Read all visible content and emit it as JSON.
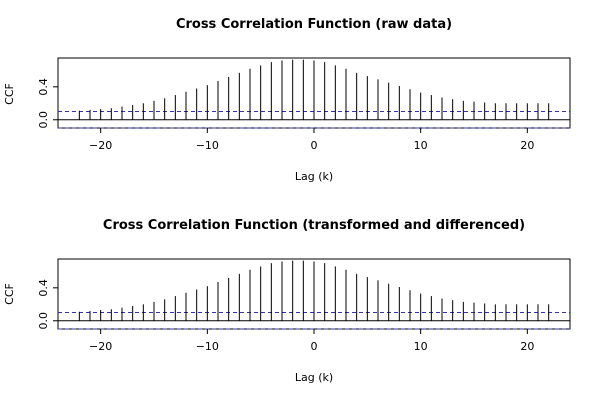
{
  "chart_data": [
    {
      "type": "bar",
      "title": "Cross Correlation Function (raw data)",
      "xlabel": "Lag (k)",
      "ylabel": "CCF",
      "x": [
        -22,
        -21,
        -20,
        -19,
        -18,
        -17,
        -16,
        -15,
        -14,
        -13,
        -12,
        -11,
        -10,
        -9,
        -8,
        -7,
        -6,
        -5,
        -4,
        -3,
        -2,
        -1,
        0,
        1,
        2,
        3,
        4,
        5,
        6,
        7,
        8,
        9,
        10,
        11,
        12,
        13,
        14,
        15,
        16,
        17,
        18,
        19,
        20,
        21,
        22
      ],
      "values": [
        0.11,
        0.12,
        0.13,
        0.14,
        0.16,
        0.18,
        0.2,
        0.23,
        0.26,
        0.3,
        0.34,
        0.38,
        0.42,
        0.47,
        0.52,
        0.57,
        0.62,
        0.66,
        0.7,
        0.72,
        0.73,
        0.73,
        0.72,
        0.7,
        0.66,
        0.62,
        0.57,
        0.53,
        0.49,
        0.45,
        0.41,
        0.37,
        0.33,
        0.3,
        0.27,
        0.25,
        0.23,
        0.22,
        0.21,
        0.2,
        0.2,
        0.2,
        0.2,
        0.2,
        0.2
      ],
      "conf_upper": 0.1,
      "conf_lower": -0.1,
      "xlim": [
        -24,
        24
      ],
      "ylim": [
        -0.1,
        0.75
      ],
      "xticks": [
        -20,
        -10,
        0,
        10,
        20
      ],
      "yticks": [
        "0.0",
        "0.4"
      ]
    },
    {
      "type": "bar",
      "title": "Cross Correlation Function (transformed and differenced)",
      "xlabel": "Lag (k)",
      "ylabel": "CCF",
      "x": [
        -22,
        -21,
        -20,
        -19,
        -18,
        -17,
        -16,
        -15,
        -14,
        -13,
        -12,
        -11,
        -10,
        -9,
        -8,
        -7,
        -6,
        -5,
        -4,
        -3,
        -2,
        -1,
        0,
        1,
        2,
        3,
        4,
        5,
        6,
        7,
        8,
        9,
        10,
        11,
        12,
        13,
        14,
        15,
        16,
        17,
        18,
        19,
        20,
        21,
        22
      ],
      "values": [
        0.11,
        0.12,
        0.13,
        0.14,
        0.16,
        0.18,
        0.2,
        0.23,
        0.26,
        0.3,
        0.34,
        0.38,
        0.42,
        0.47,
        0.52,
        0.57,
        0.62,
        0.66,
        0.7,
        0.72,
        0.73,
        0.73,
        0.72,
        0.7,
        0.66,
        0.62,
        0.57,
        0.53,
        0.49,
        0.45,
        0.41,
        0.37,
        0.33,
        0.3,
        0.27,
        0.25,
        0.23,
        0.22,
        0.21,
        0.2,
        0.2,
        0.2,
        0.2,
        0.2,
        0.2
      ],
      "conf_upper": 0.1,
      "conf_lower": -0.1,
      "xlim": [
        -24,
        24
      ],
      "ylim": [
        -0.1,
        0.75
      ],
      "xticks": [
        -20,
        -10,
        0,
        10,
        20
      ],
      "yticks": [
        "0.0",
        "0.4"
      ]
    }
  ],
  "colors": {
    "spike": "#000000",
    "zero_line": "#000000",
    "confidence_band": "#3333aa"
  }
}
